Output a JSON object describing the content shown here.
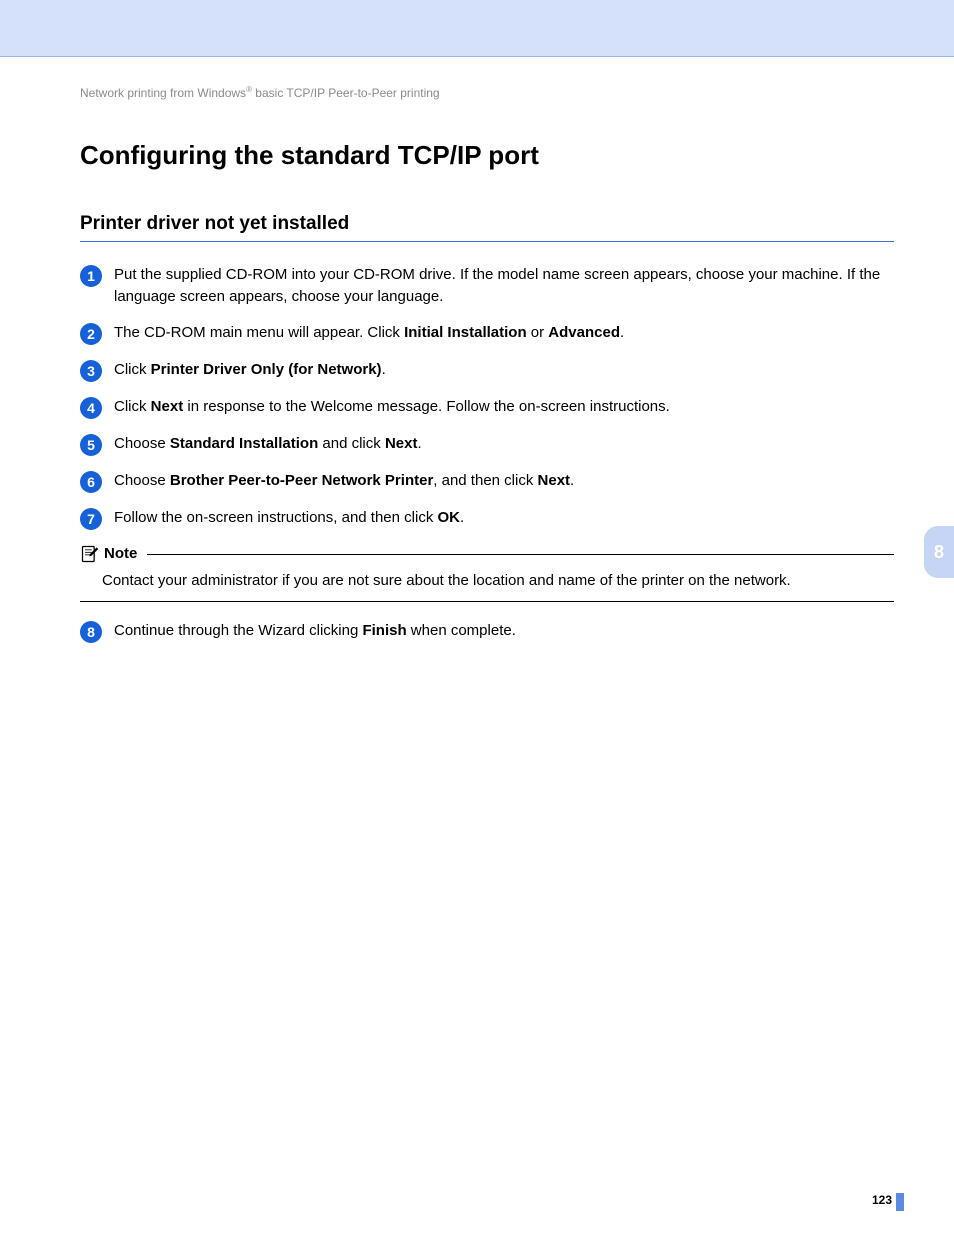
{
  "colors": {
    "top_band": "#d5e1fb",
    "top_band_underline": "#9fb5e8",
    "accent_blue": "#1660d8",
    "subtitle_rule": "#3d6fd6",
    "side_tab_bg": "#c6d4f5",
    "side_tab_text": "#ffffff",
    "breadcrumb_text": "#8a8a8a",
    "body_text": "#000000",
    "footer_mark": "#5a8be0"
  },
  "breadcrumb": {
    "prefix": "Network printing from Windows",
    "sup": "®",
    "suffix": " basic TCP/IP Peer-to-Peer printing"
  },
  "title": "Configuring the standard TCP/IP port",
  "subtitle": "Printer driver not yet installed",
  "steps": [
    {
      "num": "1",
      "segments": [
        {
          "t": "Put the supplied CD-ROM into your CD-ROM drive. If the model name screen appears, choose your machine. If the language screen appears, choose your language.",
          "b": false
        }
      ]
    },
    {
      "num": "2",
      "segments": [
        {
          "t": "The CD-ROM main menu will appear. Click ",
          "b": false
        },
        {
          "t": "Initial Installation",
          "b": true
        },
        {
          "t": " or ",
          "b": false
        },
        {
          "t": "Advanced",
          "b": true
        },
        {
          "t": ".",
          "b": false
        }
      ]
    },
    {
      "num": "3",
      "segments": [
        {
          "t": "Click ",
          "b": false
        },
        {
          "t": "Printer Driver Only (for Network)",
          "b": true
        },
        {
          "t": ".",
          "b": false
        }
      ]
    },
    {
      "num": "4",
      "segments": [
        {
          "t": "Click ",
          "b": false
        },
        {
          "t": "Next",
          "b": true
        },
        {
          "t": " in response to the Welcome message. Follow the on-screen instructions.",
          "b": false
        }
      ]
    },
    {
      "num": "5",
      "segments": [
        {
          "t": "Choose ",
          "b": false
        },
        {
          "t": "Standard Installation",
          "b": true
        },
        {
          "t": " and click ",
          "b": false
        },
        {
          "t": "Next",
          "b": true
        },
        {
          "t": ".",
          "b": false
        }
      ]
    },
    {
      "num": "6",
      "segments": [
        {
          "t": "Choose ",
          "b": false
        },
        {
          "t": "Brother Peer-to-Peer Network Printer",
          "b": true
        },
        {
          "t": ", and then click ",
          "b": false
        },
        {
          "t": "Next",
          "b": true
        },
        {
          "t": ".",
          "b": false
        }
      ]
    },
    {
      "num": "7",
      "segments": [
        {
          "t": "Follow the on-screen instructions, and then click ",
          "b": false
        },
        {
          "t": "OK",
          "b": true
        },
        {
          "t": ".",
          "b": false
        }
      ]
    }
  ],
  "note": {
    "label": "Note",
    "body": "Contact your administrator if you are not sure about the location and name of the printer on the network."
  },
  "steps_after": [
    {
      "num": "8",
      "segments": [
        {
          "t": "Continue through the Wizard clicking ",
          "b": false
        },
        {
          "t": "Finish",
          "b": true
        },
        {
          "t": " when complete.",
          "b": false
        }
      ]
    }
  ],
  "side_tab": "8",
  "page_number": "123"
}
